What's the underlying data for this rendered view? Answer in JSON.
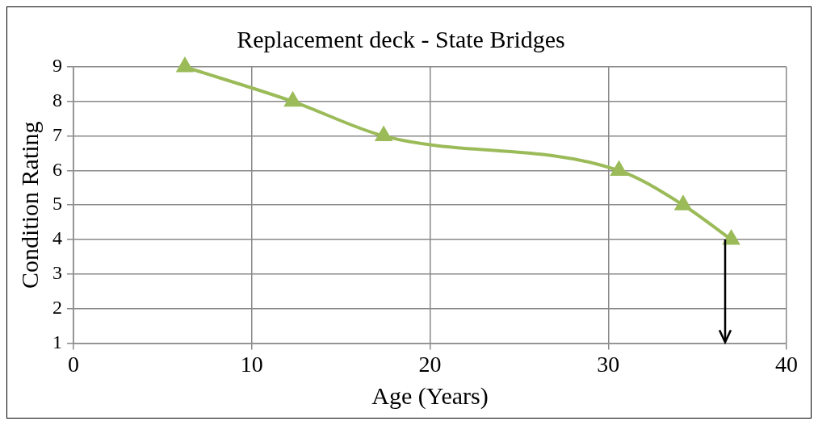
{
  "chart_data": {
    "type": "line",
    "title": "Replacement deck - State Bridges",
    "xlabel": "Age (Years)",
    "ylabel": "Condition Rating",
    "x": [
      6.25,
      12.3,
      17.4,
      30.6,
      34.2,
      36.9
    ],
    "series": [
      {
        "color": "#9bbb59",
        "values": [
          9,
          8,
          7,
          6,
          5,
          4
        ]
      }
    ],
    "xlim": [
      0,
      40
    ],
    "xticks": [
      0,
      10,
      20,
      30,
      40
    ],
    "ylim": [
      1,
      9
    ],
    "yticks": [
      1,
      2,
      3,
      4,
      5,
      6,
      7,
      8,
      9
    ],
    "grid": true,
    "legend": false,
    "marker": "triangle",
    "line_style": "solid"
  }
}
